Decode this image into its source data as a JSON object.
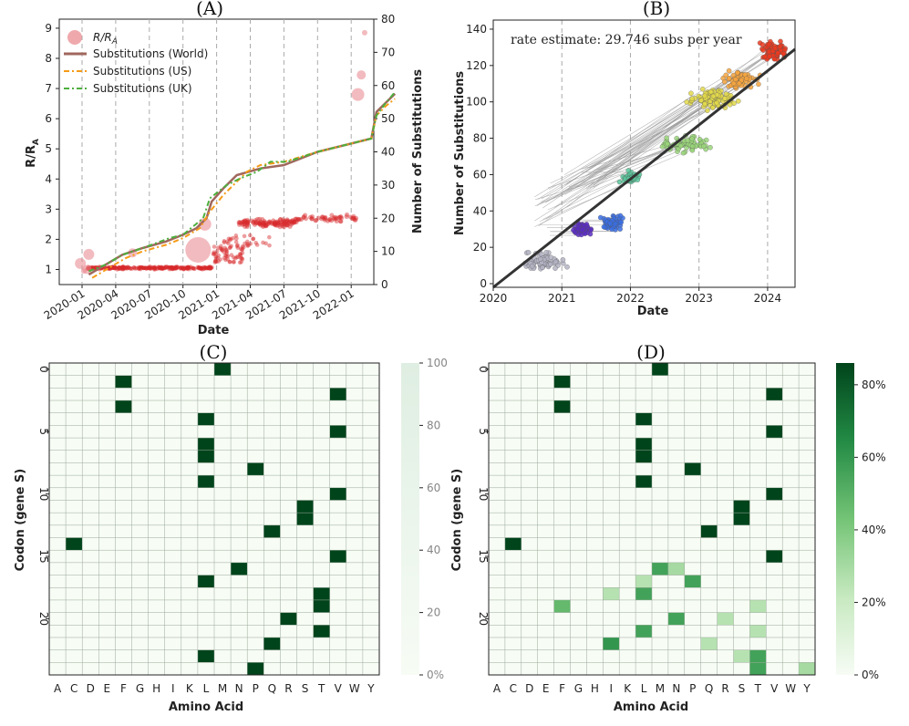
{
  "chart_data": [
    {
      "panel": "(A)",
      "type": "scatter+line",
      "xlabel": "Date",
      "ylabel_left": "R/R_A",
      "ylabel_left_main": "R/R",
      "ylabel_left_sub": "A",
      "ylabel_right": "Number of Substitutions",
      "xticks": [
        "2020-01",
        "2020-04",
        "2020-07",
        "2020-10",
        "2021-01",
        "2021-04",
        "2021-07",
        "2021-10",
        "2022-01"
      ],
      "yticks_left": [
        "1",
        "2",
        "3",
        "4",
        "5",
        "6",
        "7",
        "8",
        "9"
      ],
      "yticks_right": [
        "0",
        "10",
        "20",
        "30",
        "40",
        "50",
        "60",
        "70",
        "80"
      ],
      "ylim_left": [
        0.5,
        9.3
      ],
      "ylim_right": [
        0,
        80
      ],
      "legend": [
        {
          "label": "R/R_A",
          "main": "R/R",
          "sub": "A",
          "kind": "marker",
          "color": "#e8848a"
        },
        {
          "label": "Substitutions (World)",
          "kind": "solid",
          "color": "#a0675d"
        },
        {
          "label": "Substitutions (US)",
          "kind": "dashdot",
          "color": "#f59b16"
        },
        {
          "label": "Substitutions (UK)",
          "kind": "dashdot",
          "color": "#4caf3c"
        }
      ],
      "series_world": [
        [
          0.2,
          3
        ],
        [
          0.7,
          6
        ],
        [
          1.2,
          9
        ],
        [
          1.8,
          11
        ],
        [
          2.5,
          13
        ],
        [
          3,
          15
        ],
        [
          3.4,
          17
        ],
        [
          3.7,
          20
        ],
        [
          3.85,
          25
        ],
        [
          4.2,
          29
        ],
        [
          4.6,
          33
        ],
        [
          5.3,
          35
        ],
        [
          6,
          36
        ],
        [
          7,
          40
        ],
        [
          8.6,
          44
        ],
        [
          8.75,
          52
        ],
        [
          9.05,
          55
        ],
        [
          9.3,
          57.5
        ]
      ],
      "series_us": [
        [
          0.3,
          2
        ],
        [
          0.8,
          5
        ],
        [
          1.3,
          8
        ],
        [
          1.8,
          10
        ],
        [
          2.5,
          12
        ],
        [
          3,
          14
        ],
        [
          3.5,
          17
        ],
        [
          3.8,
          22
        ],
        [
          4.2,
          27
        ],
        [
          4.6,
          31
        ],
        [
          4.9,
          34
        ],
        [
          5.3,
          36
        ],
        [
          6,
          37
        ],
        [
          7,
          40
        ],
        [
          8.6,
          44
        ],
        [
          8.75,
          51
        ],
        [
          9.05,
          54
        ],
        [
          9.3,
          56
        ]
      ],
      "series_uk": [
        [
          0.2,
          4
        ],
        [
          0.7,
          6
        ],
        [
          1.2,
          9
        ],
        [
          1.8,
          11
        ],
        [
          2.6,
          14
        ],
        [
          3,
          15
        ],
        [
          3.6,
          20
        ],
        [
          3.8,
          26
        ],
        [
          4.3,
          30
        ],
        [
          4.7,
          32
        ],
        [
          5.2,
          34
        ],
        [
          5.6,
          37
        ],
        [
          6.1,
          37
        ],
        [
          7,
          40
        ],
        [
          8.6,
          44
        ],
        [
          8.75,
          51
        ],
        [
          9.05,
          55
        ],
        [
          9.3,
          58
        ]
      ],
      "big_markers": [
        {
          "x": -0.05,
          "y": 1.2,
          "r": 6
        },
        {
          "x": 0.2,
          "y": 1.5,
          "r": 6
        },
        {
          "x": 0.15,
          "y": 1.0,
          "r": 5
        },
        {
          "x": 1.5,
          "y": 1.55,
          "r": 5
        },
        {
          "x": 3.45,
          "y": 1.65,
          "r": 14
        },
        {
          "x": 3.65,
          "y": 2.5,
          "r": 7
        },
        {
          "x": 8.2,
          "y": 6.8,
          "r": 7
        },
        {
          "x": 8.3,
          "y": 7.45,
          "r": 5
        },
        {
          "x": 8.4,
          "y": 8.85,
          "r": 3
        },
        {
          "x": 0.05,
          "y": 0.95,
          "r": 3
        }
      ]
    },
    {
      "panel": "(B)",
      "type": "scatter",
      "annotation": "rate estimate: 29.746 subs per year",
      "xlabel": "Date",
      "ylabel": "Number of Substitutions",
      "xticks": [
        "2020",
        "2021",
        "2022",
        "2023",
        "2024"
      ],
      "yticks": [
        "0",
        "20",
        "40",
        "60",
        "80",
        "100",
        "120",
        "140"
      ],
      "xlim": [
        2020,
        2024.4
      ],
      "ylim": [
        -2,
        145
      ],
      "fit_line": {
        "slope": 29.746,
        "x0": 2020,
        "y0": -2,
        "x1": 2024.4,
        "y1": 129
      },
      "clusters": [
        {
          "name": "early",
          "xc": 2020.7,
          "yc": 12,
          "dx": 0.45,
          "dy": 7,
          "n": 70,
          "color": "#b4b4c4"
        },
        {
          "name": "alpha",
          "xc": 2021.3,
          "yc": 30,
          "dx": 0.2,
          "dy": 5,
          "n": 45,
          "color": "#5b2dc2"
        },
        {
          "name": "delta",
          "xc": 2021.75,
          "yc": 33,
          "dx": 0.22,
          "dy": 6,
          "n": 55,
          "color": "#3a6ee3"
        },
        {
          "name": "ba1",
          "xc": 2022.0,
          "yc": 58,
          "dx": 0.2,
          "dy": 5,
          "n": 35,
          "color": "#58c49a"
        },
        {
          "name": "ba2",
          "xc": 2022.8,
          "yc": 77,
          "dx": 0.45,
          "dy": 6,
          "n": 70,
          "color": "#9ad67a"
        },
        {
          "name": "xbb",
          "xc": 2023.2,
          "yc": 102,
          "dx": 0.45,
          "dy": 8,
          "n": 90,
          "color": "#e3d94a"
        },
        {
          "name": "ba286",
          "xc": 2023.6,
          "yc": 112,
          "dx": 0.35,
          "dy": 7,
          "n": 70,
          "color": "#f7a640"
        },
        {
          "name": "jn1",
          "xc": 2024.1,
          "yc": 128,
          "dx": 0.25,
          "dy": 7,
          "n": 90,
          "color": "#ec3a20"
        }
      ]
    },
    {
      "panel": "(C)",
      "type": "heatmap",
      "xlabel": "Amino Acid",
      "ylabel": "Codon (gene S)",
      "x_categories": [
        "A",
        "C",
        "D",
        "E",
        "F",
        "G",
        "H",
        "I",
        "K",
        "L",
        "M",
        "N",
        "P",
        "Q",
        "R",
        "S",
        "T",
        "V",
        "W",
        "Y"
      ],
      "yticks": [
        "0",
        "5",
        "10",
        "15",
        "20"
      ],
      "colorbar_ticks": [
        "0%",
        "20",
        "40",
        "60",
        "80",
        "100"
      ],
      "rows": 25,
      "cells": [
        {
          "r": 0,
          "c": 10,
          "v": 1
        },
        {
          "r": 1,
          "c": 4,
          "v": 1
        },
        {
          "r": 2,
          "c": 17,
          "v": 1
        },
        {
          "r": 3,
          "c": 4,
          "v": 1
        },
        {
          "r": 4,
          "c": 9,
          "v": 1
        },
        {
          "r": 5,
          "c": 17,
          "v": 1
        },
        {
          "r": 6,
          "c": 9,
          "v": 1
        },
        {
          "r": 7,
          "c": 9,
          "v": 1
        },
        {
          "r": 8,
          "c": 12,
          "v": 1
        },
        {
          "r": 9,
          "c": 9,
          "v": 1
        },
        {
          "r": 10,
          "c": 17,
          "v": 1
        },
        {
          "r": 11,
          "c": 15,
          "v": 1
        },
        {
          "r": 12,
          "c": 15,
          "v": 1
        },
        {
          "r": 13,
          "c": 13,
          "v": 1
        },
        {
          "r": 14,
          "c": 1,
          "v": 1
        },
        {
          "r": 15,
          "c": 17,
          "v": 1
        },
        {
          "r": 16,
          "c": 11,
          "v": 1
        },
        {
          "r": 17,
          "c": 9,
          "v": 1
        },
        {
          "r": 18,
          "c": 16,
          "v": 1
        },
        {
          "r": 19,
          "c": 16,
          "v": 1
        },
        {
          "r": 20,
          "c": 14,
          "v": 1
        },
        {
          "r": 21,
          "c": 16,
          "v": 1
        },
        {
          "r": 22,
          "c": 13,
          "v": 1
        },
        {
          "r": 23,
          "c": 9,
          "v": 1
        },
        {
          "r": 24,
          "c": 12,
          "v": 1
        }
      ]
    },
    {
      "panel": "(D)",
      "type": "heatmap",
      "xlabel": "Amino Acid",
      "ylabel": "Codon (gene S)",
      "x_categories": [
        "A",
        "C",
        "D",
        "E",
        "F",
        "G",
        "H",
        "I",
        "K",
        "L",
        "M",
        "N",
        "P",
        "Q",
        "R",
        "S",
        "T",
        "V",
        "W",
        "Y"
      ],
      "yticks": [
        "0",
        "5",
        "10",
        "15",
        "20"
      ],
      "colorbar_ticks": [
        "0%",
        "20%",
        "40%",
        "60%",
        "80%"
      ],
      "rows": 25,
      "cells": [
        {
          "r": 0,
          "c": 10,
          "v": 1
        },
        {
          "r": 1,
          "c": 4,
          "v": 1
        },
        {
          "r": 2,
          "c": 17,
          "v": 1
        },
        {
          "r": 3,
          "c": 4,
          "v": 1
        },
        {
          "r": 4,
          "c": 9,
          "v": 1
        },
        {
          "r": 5,
          "c": 17,
          "v": 1
        },
        {
          "r": 6,
          "c": 9,
          "v": 1
        },
        {
          "r": 7,
          "c": 9,
          "v": 1
        },
        {
          "r": 8,
          "c": 12,
          "v": 1
        },
        {
          "r": 9,
          "c": 9,
          "v": 1
        },
        {
          "r": 10,
          "c": 17,
          "v": 1
        },
        {
          "r": 11,
          "c": 15,
          "v": 1
        },
        {
          "r": 12,
          "c": 15,
          "v": 1
        },
        {
          "r": 13,
          "c": 13,
          "v": 1
        },
        {
          "r": 14,
          "c": 1,
          "v": 1
        },
        {
          "r": 15,
          "c": 17,
          "v": 1
        },
        {
          "r": 16,
          "c": 10,
          "v": 0.65
        },
        {
          "r": 16,
          "c": 11,
          "v": 0.35
        },
        {
          "r": 17,
          "c": 9,
          "v": 0.3
        },
        {
          "r": 17,
          "c": 12,
          "v": 0.65
        },
        {
          "r": 18,
          "c": 7,
          "v": 0.3
        },
        {
          "r": 18,
          "c": 9,
          "v": 0.65
        },
        {
          "r": 19,
          "c": 4,
          "v": 0.55
        },
        {
          "r": 19,
          "c": 16,
          "v": 0.3
        },
        {
          "r": 20,
          "c": 11,
          "v": 0.65
        },
        {
          "r": 20,
          "c": 14,
          "v": 0.3
        },
        {
          "r": 21,
          "c": 9,
          "v": 0.65
        },
        {
          "r": 21,
          "c": 16,
          "v": 0.3
        },
        {
          "r": 22,
          "c": 7,
          "v": 0.7
        },
        {
          "r": 22,
          "c": 13,
          "v": 0.3
        },
        {
          "r": 23,
          "c": 15,
          "v": 0.3
        },
        {
          "r": 23,
          "c": 16,
          "v": 0.65
        },
        {
          "r": 24,
          "c": 16,
          "v": 0.65
        },
        {
          "r": 24,
          "c": 19,
          "v": 0.35
        }
      ]
    }
  ]
}
